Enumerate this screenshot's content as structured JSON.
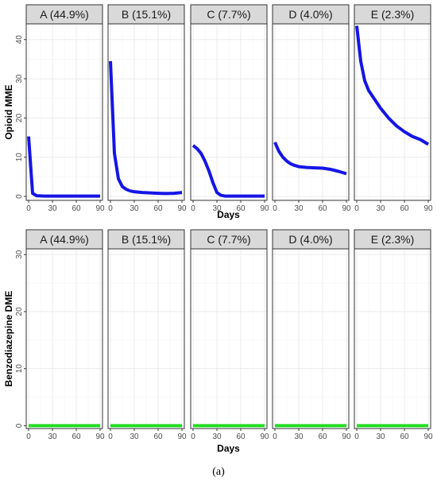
{
  "caption": "(a)",
  "colors": {
    "opioid_line": "#1515e6",
    "benzo_line": "#22dd22",
    "strip_fill": "#d9d9d9",
    "grid": "#ebebeb",
    "panel_border": "#333333"
  },
  "chart_data": [
    {
      "type": "line",
      "title": "",
      "xlabel": "Days",
      "ylabel": "Opioid MME",
      "xlim": [
        -3,
        93
      ],
      "ylim": [
        -1,
        44
      ],
      "x_ticks": [
        0,
        30,
        60,
        90
      ],
      "y_ticks": [
        0,
        10,
        20,
        30,
        40
      ],
      "facets": [
        {
          "label": "A (44.9%)",
          "series": [
            {
              "x": [
                0,
                5,
                10,
                20,
                30,
                45,
                60,
                75,
                90
              ],
              "y": [
                15.3,
                0.8,
                0.2,
                0.1,
                0.1,
                0.1,
                0.1,
                0.1,
                0.1
              ]
            }
          ]
        },
        {
          "label": "B (15.1%)",
          "series": [
            {
              "x": [
                0,
                5,
                10,
                15,
                20,
                25,
                30,
                40,
                50,
                60,
                70,
                80,
                90
              ],
              "y": [
                34.5,
                11,
                4.5,
                2.5,
                1.8,
                1.4,
                1.2,
                1.0,
                0.9,
                0.8,
                0.75,
                0.8,
                1.0
              ]
            }
          ]
        },
        {
          "label": "C (7.7%)",
          "series": [
            {
              "x": [
                0,
                5,
                10,
                15,
                20,
                25,
                30,
                35,
                40,
                50,
                60,
                70,
                80,
                90
              ],
              "y": [
                13,
                12.2,
                11,
                9,
                6.5,
                3.5,
                1.0,
                0.3,
                0.1,
                0.1,
                0.1,
                0.1,
                0.1,
                0.1
              ]
            }
          ]
        },
        {
          "label": "D (4.0%)",
          "series": [
            {
              "x": [
                0,
                5,
                10,
                15,
                20,
                25,
                30,
                40,
                50,
                60,
                70,
                80,
                90
              ],
              "y": [
                13.8,
                11.5,
                10,
                9,
                8.3,
                7.9,
                7.6,
                7.4,
                7.3,
                7.2,
                6.9,
                6.4,
                5.8
              ]
            }
          ]
        },
        {
          "label": "E (2.3%)",
          "series": [
            {
              "x": [
                0,
                5,
                10,
                15,
                20,
                30,
                40,
                50,
                60,
                70,
                80,
                90
              ],
              "y": [
                43.5,
                34.5,
                29.5,
                27,
                25.5,
                22.5,
                20,
                18,
                16.5,
                15.3,
                14.5,
                13.3
              ]
            }
          ]
        }
      ]
    },
    {
      "type": "line",
      "title": "",
      "xlabel": "Days",
      "ylabel": "Benzodiazepine DME",
      "xlim": [
        -3,
        93
      ],
      "ylim": [
        -0.5,
        31
      ],
      "x_ticks": [
        0,
        30,
        60,
        90
      ],
      "y_ticks": [
        0,
        10,
        20,
        30
      ],
      "facets": [
        {
          "label": "A (44.9%)",
          "series": [
            {
              "x": [
                0,
                90
              ],
              "y": [
                0,
                0
              ]
            }
          ]
        },
        {
          "label": "B (15.1%)",
          "series": [
            {
              "x": [
                0,
                90
              ],
              "y": [
                0,
                0
              ]
            }
          ]
        },
        {
          "label": "C (7.7%)",
          "series": [
            {
              "x": [
                0,
                90
              ],
              "y": [
                0,
                0
              ]
            }
          ]
        },
        {
          "label": "D (4.0%)",
          "series": [
            {
              "x": [
                0,
                90
              ],
              "y": [
                0,
                0
              ]
            }
          ]
        },
        {
          "label": "E (2.3%)",
          "series": [
            {
              "x": [
                0,
                90
              ],
              "y": [
                0,
                0
              ]
            }
          ]
        }
      ]
    }
  ]
}
